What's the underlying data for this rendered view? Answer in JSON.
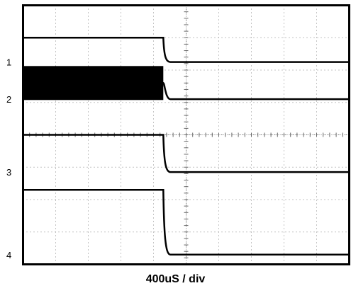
{
  "chart_data": {
    "type": "line",
    "xlabel": "400uS / div",
    "x": [
      0,
      1,
      2,
      3,
      4,
      5,
      6,
      7,
      8,
      9,
      10
    ],
    "xlim": [
      0,
      10
    ],
    "ylim": [
      0,
      8
    ],
    "grid": true,
    "channel_labels": [
      "1",
      "2",
      "3",
      "4"
    ],
    "series": [
      {
        "name": "1",
        "values": [
          7.0,
          7.0,
          7.0,
          7.0,
          7.0,
          6.25,
          6.25,
          6.25,
          6.25,
          6.25,
          6.25
        ]
      },
      {
        "name": "2",
        "values": [
          5.6,
          5.6,
          5.6,
          5.6,
          5.6,
          5.1,
          5.1,
          5.1,
          5.1,
          5.1,
          5.1
        ],
        "noisy_before_edge": true
      },
      {
        "name": "3",
        "values": [
          4.0,
          4.0,
          4.0,
          4.0,
          4.0,
          2.85,
          2.85,
          2.85,
          2.85,
          2.85,
          2.85
        ]
      },
      {
        "name": "4",
        "values": [
          2.3,
          2.3,
          2.3,
          2.3,
          2.3,
          0.3,
          0.3,
          0.3,
          0.3,
          0.3,
          0.3
        ]
      }
    ],
    "edge_x": 4.3
  }
}
